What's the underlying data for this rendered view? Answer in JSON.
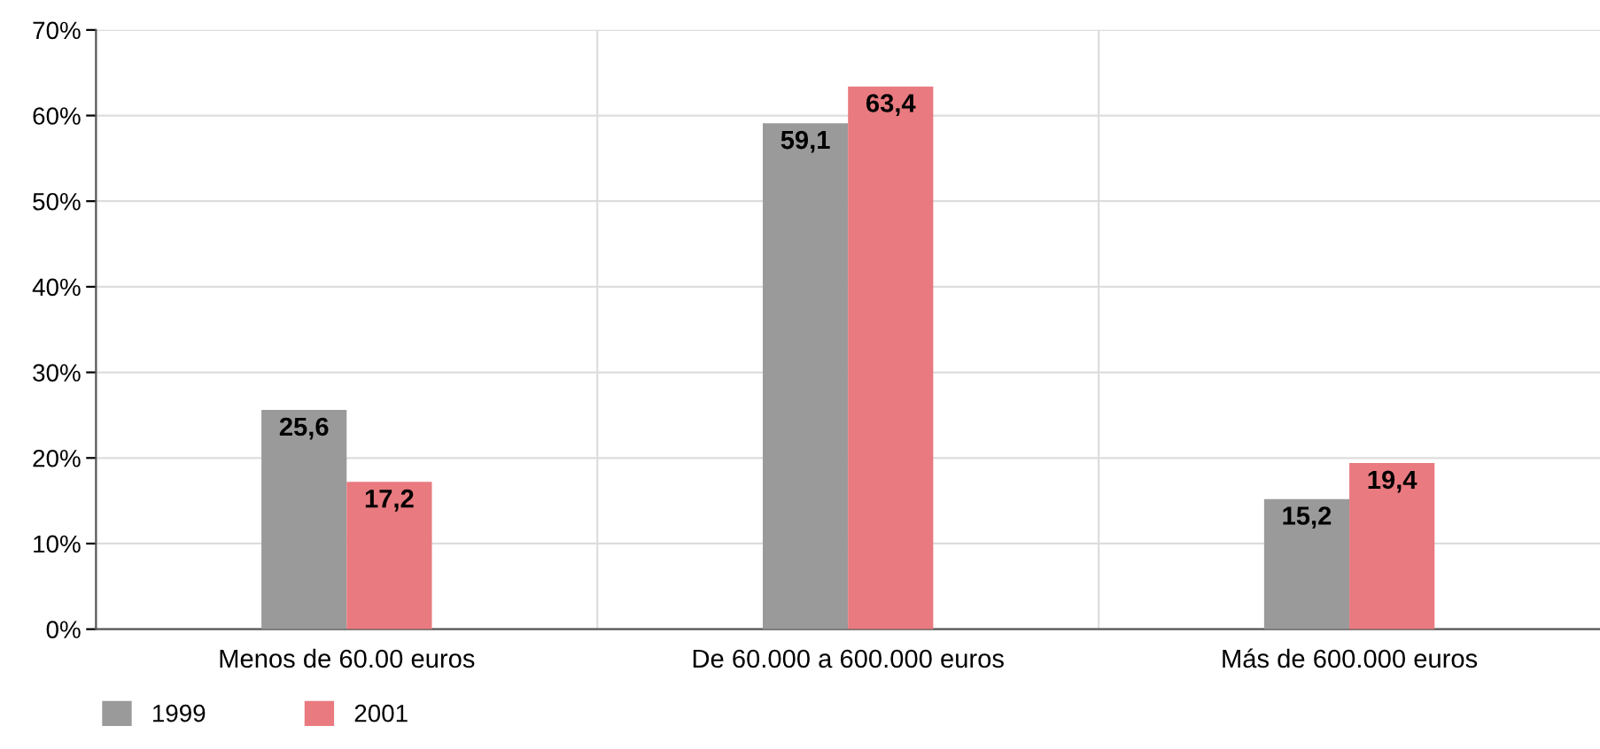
{
  "chart_data": {
    "type": "bar",
    "categories": [
      "Menos de 60.00 euros",
      "De 60.000 a 600.000 euros",
      "Más de 600.000 euros"
    ],
    "series": [
      {
        "name": "1999",
        "color": "#9a9a9a",
        "values": [
          25.6,
          59.1,
          15.2
        ],
        "value_labels": [
          "25,6",
          "59,1",
          "15,2"
        ]
      },
      {
        "name": "2001",
        "color": "#e87a80",
        "values": [
          17.2,
          63.4,
          19.4
        ],
        "value_labels": [
          "17,2",
          "63,4",
          "19,4"
        ]
      }
    ],
    "ylim": [
      0,
      70
    ],
    "yticks": [
      {
        "value": 0,
        "label": "0%"
      },
      {
        "value": 10,
        "label": "10%"
      },
      {
        "value": 20,
        "label": "20%"
      },
      {
        "value": 30,
        "label": "30%"
      },
      {
        "value": 40,
        "label": "40%"
      },
      {
        "value": 50,
        "label": "50%"
      },
      {
        "value": 60,
        "label": "60%"
      },
      {
        "value": 70,
        "label": "70%"
      }
    ],
    "grid": true,
    "legend": "bottom left"
  }
}
